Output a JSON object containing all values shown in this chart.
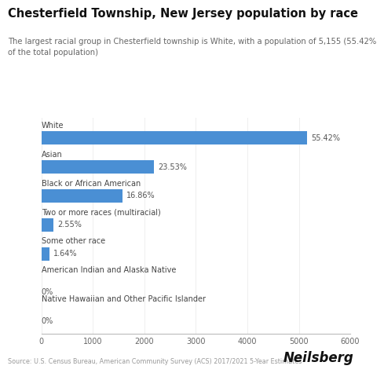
{
  "title": "Chesterfield Township, New Jersey population by race",
  "subtitle": "The largest racial group in Chesterfield township is White, with a population of 5,155 (55.42%\nof the total population)",
  "categories": [
    "White",
    "Asian",
    "Black or African American",
    "Two or more races (multiracial)",
    "Some other race",
    "American Indian and Alaska Native",
    "Native Hawaiian and Other Pacific Islander"
  ],
  "values": [
    5155,
    2190,
    1570,
    237,
    153,
    0,
    0
  ],
  "percentages": [
    "55.42%",
    "23.53%",
    "16.86%",
    "2.55%",
    "1.64%",
    "0%",
    "0%"
  ],
  "bar_color": "#4A8FD4",
  "xlim": [
    0,
    6000
  ],
  "xticks": [
    0,
    1000,
    2000,
    3000,
    4000,
    5000,
    6000
  ],
  "source_text": "Source: U.S. Census Bureau, American Community Survey (ACS) 2017/2021 5-Year Estimates",
  "brand": "Neilsberg",
  "background_color": "#ffffff",
  "title_fontsize": 10.5,
  "subtitle_fontsize": 7.2,
  "cat_fontsize": 7.0,
  "pct_fontsize": 7.0,
  "tick_fontsize": 7.0,
  "source_fontsize": 5.8,
  "brand_fontsize": 12
}
